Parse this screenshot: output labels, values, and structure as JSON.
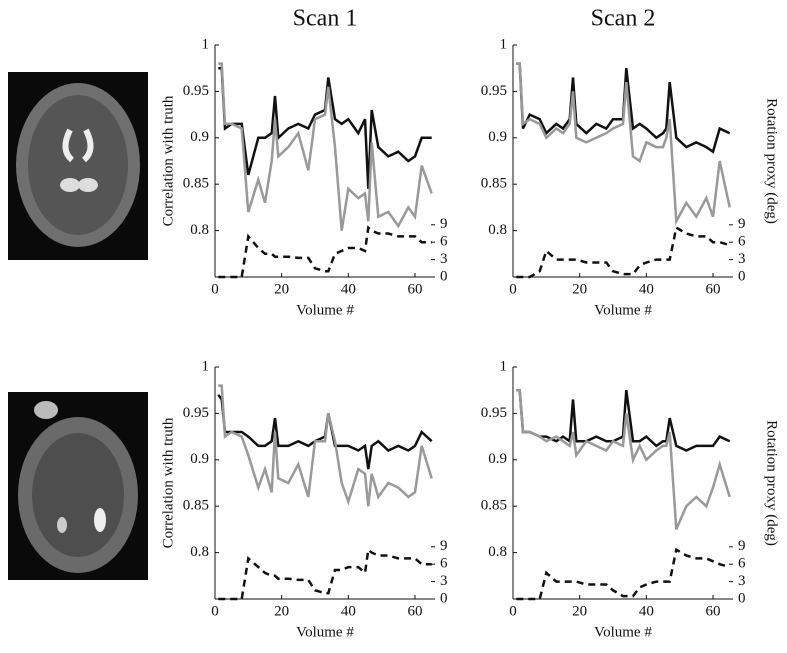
{
  "chart_data": [
    {
      "type": "line",
      "title": "Scan 1",
      "ylabel": "Correlation with truth",
      "xlabel": "Volume #",
      "x": [
        1,
        2,
        3,
        5,
        8,
        10,
        13,
        15,
        17,
        18,
        19,
        22,
        25,
        28,
        30,
        33,
        34,
        36,
        38,
        40,
        43,
        45,
        46,
        47,
        49,
        52,
        55,
        58,
        60,
        62,
        65
      ],
      "xlim": [
        0,
        66
      ],
      "xticks": [
        0,
        20,
        40,
        60
      ],
      "ylim": [
        0.75,
        1
      ],
      "yticks": [
        0.8,
        0.85,
        0.9,
        0.95,
        1
      ],
      "y2lim": [
        0,
        40
      ],
      "y2ticks": [
        0,
        3,
        6,
        9
      ],
      "series": [
        {
          "color": "#111111",
          "linestyle": "solid",
          "values": [
            0.975,
            0.975,
            0.91,
            0.915,
            0.915,
            0.86,
            0.9,
            0.9,
            0.905,
            0.945,
            0.9,
            0.91,
            0.915,
            0.91,
            0.925,
            0.93,
            0.965,
            0.92,
            0.915,
            0.92,
            0.905,
            0.92,
            0.845,
            0.93,
            0.89,
            0.88,
            0.885,
            0.875,
            0.88,
            0.9,
            0.9
          ]
        },
        {
          "color": "#999999",
          "linestyle": "solid",
          "values": [
            0.98,
            0.98,
            0.915,
            0.915,
            0.91,
            0.82,
            0.855,
            0.83,
            0.875,
            0.92,
            0.88,
            0.89,
            0.905,
            0.865,
            0.92,
            0.925,
            0.955,
            0.89,
            0.8,
            0.845,
            0.835,
            0.84,
            0.81,
            0.895,
            0.815,
            0.82,
            0.805,
            0.825,
            0.815,
            0.87,
            0.84
          ]
        },
        {
          "color": "#111111",
          "linestyle": "dashed",
          "axis": "y2",
          "values": [
            0,
            0,
            0,
            0,
            0,
            7,
            5,
            4,
            4,
            3.5,
            3.5,
            3.5,
            3.3,
            3.3,
            1.5,
            1,
            1,
            4,
            4.5,
            5,
            5,
            4.5,
            8.5,
            8,
            7.5,
            7.5,
            7,
            7,
            7,
            6,
            6
          ]
        }
      ]
    },
    {
      "type": "line",
      "title": "Scan 2",
      "y2label": "Rotation proxy (deg)",
      "xlabel": "Volume #",
      "x": [
        1,
        2,
        3,
        5,
        8,
        10,
        13,
        15,
        17,
        18,
        19,
        22,
        25,
        28,
        30,
        33,
        34,
        36,
        38,
        40,
        43,
        45,
        46,
        47,
        49,
        52,
        55,
        58,
        60,
        62,
        65
      ],
      "xlim": [
        0,
        66
      ],
      "xticks": [
        0,
        20,
        40,
        60
      ],
      "ylim": [
        0.75,
        1
      ],
      "yticks": [
        0.8,
        0.85,
        0.9,
        0.95,
        1
      ],
      "y2lim": [
        0,
        40
      ],
      "y2ticks": [
        0,
        3,
        6,
        9
      ],
      "series": [
        {
          "color": "#111111",
          "linestyle": "solid",
          "values": [
            0.98,
            0.98,
            0.91,
            0.925,
            0.92,
            0.905,
            0.915,
            0.91,
            0.92,
            0.965,
            0.915,
            0.905,
            0.915,
            0.91,
            0.92,
            0.92,
            0.975,
            0.91,
            0.915,
            0.91,
            0.9,
            0.905,
            0.91,
            0.96,
            0.9,
            0.89,
            0.895,
            0.89,
            0.885,
            0.91,
            0.905
          ]
        },
        {
          "color": "#999999",
          "linestyle": "solid",
          "values": [
            0.98,
            0.98,
            0.915,
            0.92,
            0.915,
            0.9,
            0.91,
            0.905,
            0.915,
            0.95,
            0.9,
            0.895,
            0.9,
            0.905,
            0.91,
            0.915,
            0.96,
            0.88,
            0.875,
            0.895,
            0.89,
            0.89,
            0.9,
            0.92,
            0.81,
            0.83,
            0.815,
            0.835,
            0.815,
            0.875,
            0.825
          ]
        },
        {
          "color": "#111111",
          "linestyle": "dashed",
          "axis": "y2",
          "values": [
            0,
            0,
            0,
            0,
            1,
            4.5,
            3,
            3,
            3,
            3,
            3,
            2.5,
            2.5,
            2.5,
            1,
            0.5,
            0.5,
            0.5,
            2,
            2.5,
            3,
            3,
            3,
            3,
            8.5,
            7.5,
            7,
            7,
            6,
            6,
            5.5
          ]
        }
      ]
    },
    {
      "type": "line",
      "ylabel": "Correlation with truth",
      "xlabel": "Volume #",
      "x": [
        1,
        2,
        3,
        5,
        8,
        10,
        13,
        15,
        17,
        18,
        19,
        22,
        25,
        28,
        30,
        33,
        34,
        36,
        38,
        40,
        43,
        45,
        46,
        47,
        49,
        52,
        55,
        58,
        60,
        62,
        65
      ],
      "xlim": [
        0,
        66
      ],
      "xticks": [
        0,
        20,
        40,
        60
      ],
      "ylim": [
        0.75,
        1
      ],
      "yticks": [
        0.8,
        0.85,
        0.9,
        0.95,
        1
      ],
      "y2lim": [
        0,
        40
      ],
      "y2ticks": [
        0,
        3,
        6,
        9
      ],
      "series": [
        {
          "color": "#111111",
          "linestyle": "solid",
          "values": [
            0.97,
            0.965,
            0.93,
            0.93,
            0.93,
            0.925,
            0.915,
            0.915,
            0.92,
            0.945,
            0.915,
            0.915,
            0.92,
            0.915,
            0.92,
            0.925,
            0.95,
            0.915,
            0.915,
            0.915,
            0.91,
            0.915,
            0.89,
            0.915,
            0.92,
            0.91,
            0.915,
            0.91,
            0.915,
            0.93,
            0.92
          ]
        },
        {
          "color": "#999999",
          "linestyle": "solid",
          "values": [
            0.98,
            0.98,
            0.925,
            0.93,
            0.925,
            0.905,
            0.87,
            0.89,
            0.865,
            0.93,
            0.88,
            0.875,
            0.895,
            0.86,
            0.92,
            0.92,
            0.95,
            0.92,
            0.875,
            0.855,
            0.89,
            0.885,
            0.85,
            0.885,
            0.86,
            0.875,
            0.87,
            0.86,
            0.865,
            0.915,
            0.88
          ]
        },
        {
          "color": "#111111",
          "linestyle": "dashed",
          "axis": "y2",
          "values": [
            0,
            0,
            0,
            0,
            0,
            7,
            5.5,
            4.5,
            4,
            4,
            3.5,
            3.5,
            3.3,
            3.3,
            1.5,
            1,
            1,
            5,
            5,
            5.5,
            5.5,
            4.5,
            8.5,
            8,
            7.5,
            7.5,
            7,
            7,
            7,
            6,
            6
          ]
        }
      ]
    },
    {
      "type": "line",
      "y2label": "Rotation proxy (deg)",
      "xlabel": "Volume #",
      "x": [
        1,
        2,
        3,
        5,
        8,
        10,
        13,
        15,
        17,
        18,
        19,
        22,
        25,
        28,
        30,
        33,
        34,
        36,
        38,
        40,
        43,
        45,
        46,
        47,
        49,
        52,
        55,
        58,
        60,
        62,
        65
      ],
      "xlim": [
        0,
        66
      ],
      "xticks": [
        0,
        20,
        40,
        60
      ],
      "ylim": [
        0.75,
        1
      ],
      "yticks": [
        0.8,
        0.85,
        0.9,
        0.95,
        1
      ],
      "y2lim": [
        0,
        40
      ],
      "y2ticks": [
        0,
        3,
        6,
        9
      ],
      "series": [
        {
          "color": "#111111",
          "linestyle": "solid",
          "values": [
            0.975,
            0.975,
            0.93,
            0.93,
            0.925,
            0.925,
            0.92,
            0.925,
            0.92,
            0.965,
            0.92,
            0.92,
            0.925,
            0.92,
            0.92,
            0.925,
            0.975,
            0.92,
            0.92,
            0.925,
            0.915,
            0.92,
            0.92,
            0.945,
            0.915,
            0.91,
            0.915,
            0.915,
            0.915,
            0.925,
            0.92
          ]
        },
        {
          "color": "#999999",
          "linestyle": "solid",
          "values": [
            0.975,
            0.975,
            0.93,
            0.93,
            0.925,
            0.92,
            0.925,
            0.92,
            0.915,
            0.93,
            0.905,
            0.92,
            0.915,
            0.91,
            0.92,
            0.915,
            0.95,
            0.9,
            0.915,
            0.9,
            0.91,
            0.915,
            0.915,
            0.93,
            0.825,
            0.85,
            0.86,
            0.85,
            0.87,
            0.895,
            0.86
          ]
        },
        {
          "color": "#111111",
          "linestyle": "dashed",
          "axis": "y2",
          "values": [
            0,
            0,
            0,
            0,
            0,
            4.5,
            3,
            3,
            3,
            3,
            3,
            2.5,
            2.5,
            2.5,
            1.5,
            0.5,
            0.5,
            0.5,
            2,
            2.5,
            3,
            3,
            3,
            3,
            8.5,
            7.5,
            7,
            7,
            6.5,
            6,
            5.5
          ]
        }
      ]
    }
  ]
}
